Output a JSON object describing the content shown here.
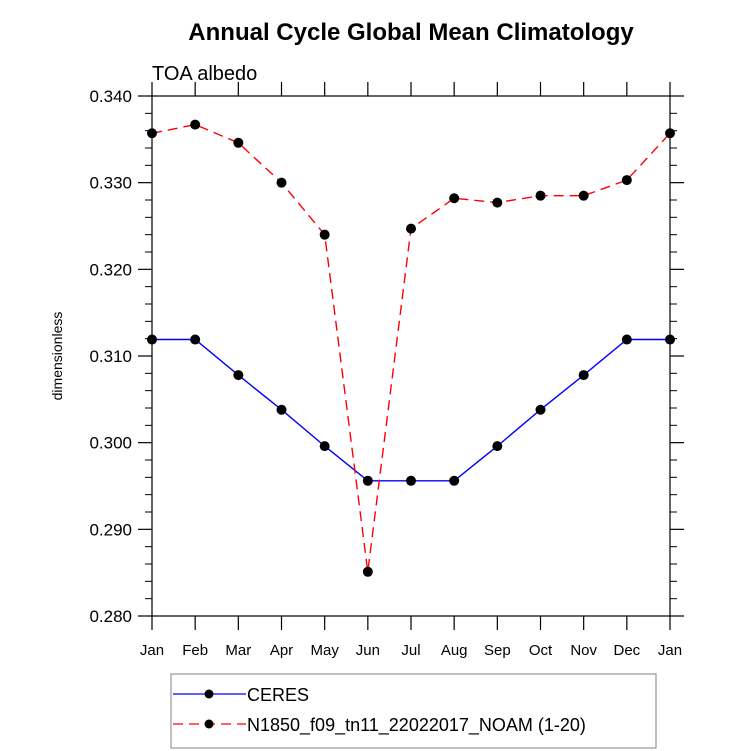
{
  "chart_data": {
    "type": "line",
    "title": "Annual Cycle Global Mean Climatology",
    "subtitle": "TOA albedo",
    "xlabel": "",
    "ylabel": "dimensionless",
    "categories": [
      "Jan",
      "Feb",
      "Mar",
      "Apr",
      "May",
      "Jun",
      "Jul",
      "Aug",
      "Sep",
      "Oct",
      "Nov",
      "Dec",
      "Jan"
    ],
    "ylim": [
      0.28,
      0.34
    ],
    "yticks": [
      "0.280",
      "0.290",
      "0.300",
      "0.310",
      "0.320",
      "0.330",
      "0.340"
    ],
    "ytick_values": [
      0.28,
      0.29,
      0.3,
      0.31,
      0.32,
      0.33,
      0.34
    ],
    "grid": false,
    "legend_position": "bottom-center",
    "series": [
      {
        "name": "CERES",
        "color": "#0000ff",
        "dash": "solid",
        "marker": "filled-circle",
        "values": [
          0.3119,
          0.3119,
          0.3078,
          0.3038,
          0.2996,
          0.2956,
          0.2956,
          0.2956,
          0.2996,
          0.3038,
          0.3078,
          0.3119,
          0.3119
        ]
      },
      {
        "name": "N1850_f09_tn11_22022017_NOAM (1-20)",
        "color": "#ff0000",
        "dash": "dashed",
        "marker": "filled-circle",
        "values": [
          0.3357,
          0.3367,
          0.3346,
          0.33,
          0.324,
          0.2851,
          0.3247,
          0.3282,
          0.3277,
          0.3285,
          0.3285,
          0.3303,
          0.3357
        ]
      }
    ]
  }
}
